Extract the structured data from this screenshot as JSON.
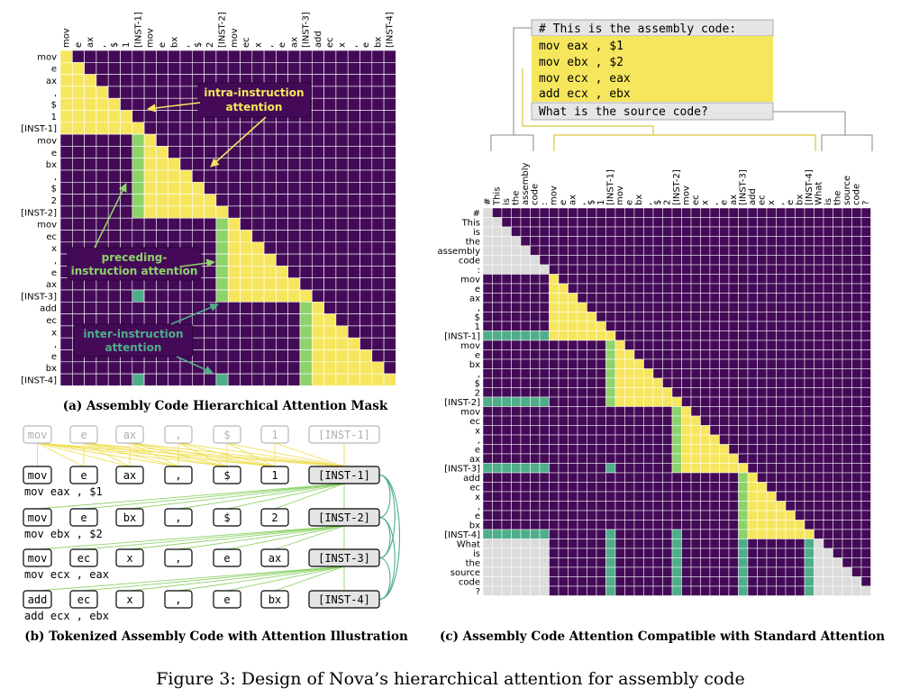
{
  "colors": {
    "purple": "#440a57",
    "yellow": "#f6e65e",
    "green_light": "#8ed36a",
    "green": "#4fae8a",
    "gray": "#dcdcdc",
    "grid": "#ffffff",
    "code_bg": "#f6e65e",
    "box_gray": "#e6e6e6"
  },
  "panel_a": {
    "caption": "(a) Assembly Code Hierarchical Attention Mask",
    "tokens": [
      "mov",
      "e",
      "ax",
      ",",
      "$",
      "1",
      "[INST-1]",
      "mov",
      "e",
      "bx",
      ",",
      "$",
      "2",
      "[INST-2]",
      "mov",
      "ec",
      "x",
      ",",
      "e",
      "ax",
      "[INST-3]",
      "add",
      "ec",
      "x",
      ",",
      "e",
      "bx",
      "[INST-4]"
    ],
    "annotations": {
      "intra": "intra-instruction attention",
      "preceding": "preceding-instruction attention",
      "inter": "inter-instruction attention"
    }
  },
  "panel_b": {
    "caption": "(b) Tokenized Assembly Code with Attention Illustration",
    "ghost_row": [
      "mov",
      "e",
      "ax",
      ",",
      "$",
      "1",
      "[INST-1]"
    ],
    "rows": [
      {
        "tokens": [
          "mov",
          "e",
          "ax",
          ",",
          "$",
          "1",
          "[INST-1]"
        ],
        "code": "mov eax , $1"
      },
      {
        "tokens": [
          "mov",
          "e",
          "bx",
          ",",
          "$",
          "2",
          "[INST-2]"
        ],
        "code": "mov ebx , $2"
      },
      {
        "tokens": [
          "mov",
          "ec",
          "x",
          ",",
          "e",
          "ax",
          "[INST-3]"
        ],
        "code": "mov ecx , eax"
      },
      {
        "tokens": [
          "add",
          "ec",
          "x",
          ",",
          "e",
          "bx",
          "[INST-4]"
        ],
        "code": "add ecx , ebx"
      }
    ]
  },
  "panel_c": {
    "caption": "(c) Assembly Code Attention Compatible with Standard Attention",
    "code_box": {
      "comment": "# This is the assembly code:",
      "lines": [
        "mov eax , $1",
        "mov ebx , $2",
        "mov ecx , eax",
        "add ecx , ebx"
      ],
      "question": "What is the source code?"
    },
    "tokens": [
      "#",
      "This",
      "is",
      "the",
      "assembly",
      "code",
      ":",
      "mov",
      "e",
      "ax",
      ",",
      "$",
      "1",
      "[INST-1]",
      "mov",
      "e",
      "bx",
      ",",
      "$",
      "2",
      "[INST-2]",
      "mov",
      "ec",
      "x",
      ",",
      "e",
      "ax",
      "[INST-3]",
      "add",
      "ec",
      "x",
      ",",
      "e",
      "bx",
      "[INST-4]",
      "What",
      "is",
      "the",
      "source",
      "code",
      "?"
    ]
  },
  "figure_caption": "Figure 3: Design of Nova’s hierarchical attention for assembly code"
}
